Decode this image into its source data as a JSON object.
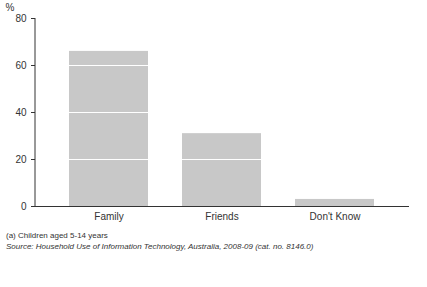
{
  "chart_data": {
    "type": "bar",
    "y_label": "%",
    "categories": [
      "Family",
      "Friends",
      "Don't Know"
    ],
    "values": [
      66,
      31,
      3
    ],
    "color": "#c8c8c8",
    "ylim": [
      0,
      80
    ],
    "yticks": [
      0,
      20,
      40,
      60,
      80
    ],
    "grid": true,
    "annotations": [
      "(a) Children aged 5-14 years",
      "Source: Household Use of Information Technology, Australia, 2008-09 (cat. no. 8146.0)"
    ]
  }
}
